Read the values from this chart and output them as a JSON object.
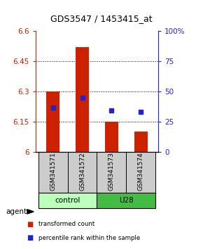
{
  "title": "GDS3547 / 1453415_at",
  "samples": [
    "GSM341571",
    "GSM341572",
    "GSM341573",
    "GSM341574"
  ],
  "bar_values": [
    6.3,
    6.52,
    6.15,
    6.1
  ],
  "bar_base": 6.0,
  "percentile_values": [
    6.22,
    6.27,
    6.205,
    6.2
  ],
  "ylim": [
    6.0,
    6.6
  ],
  "yticks": [
    6.0,
    6.15,
    6.3,
    6.45,
    6.6
  ],
  "ytick_labels": [
    "6",
    "6.15",
    "6.3",
    "6.45",
    "6.6"
  ],
  "right_yticks_pct": [
    0,
    25,
    50,
    75,
    100
  ],
  "right_ytick_labels": [
    "0",
    "25",
    "50",
    "75",
    "100%"
  ],
  "bar_color": "#cc2200",
  "percentile_color": "#2222cc",
  "control_color": "#bbffbb",
  "u28_color": "#44bb44",
  "left_axis_color": "#cc2200",
  "right_axis_color": "#2222cc",
  "bar_width": 0.45,
  "agent_label": "agent",
  "legend_items": [
    {
      "label": "transformed count",
      "color": "#cc2200"
    },
    {
      "label": "percentile rank within the sample",
      "color": "#2222cc"
    }
  ]
}
